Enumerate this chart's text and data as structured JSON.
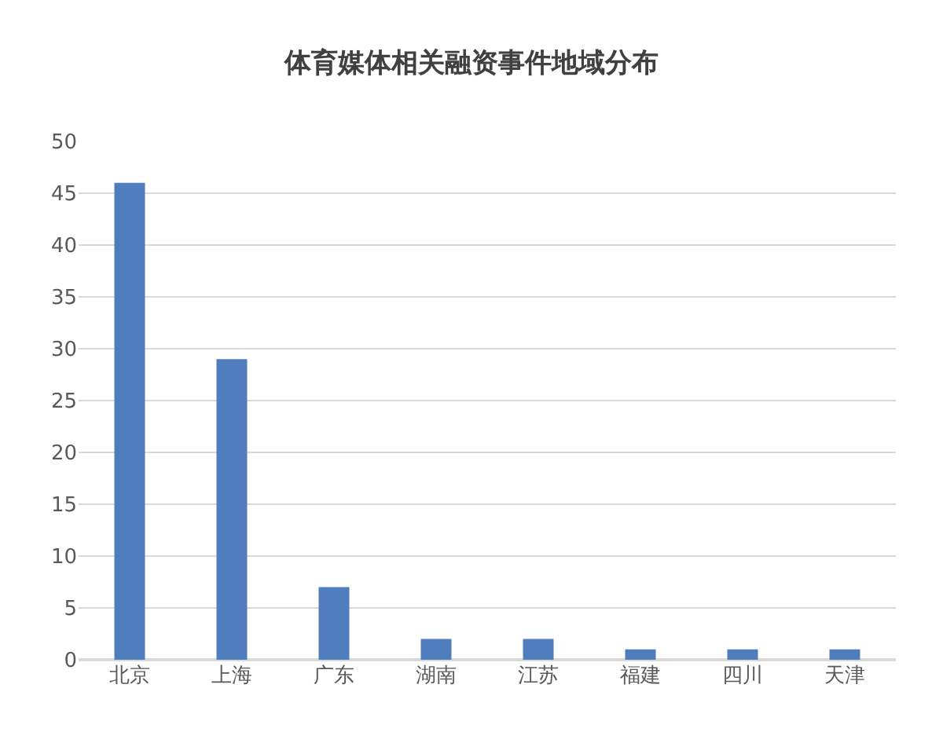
{
  "chart_data": {
    "type": "bar",
    "title": "体育媒体相关融资事件地域分布",
    "categories": [
      "北京",
      "上海",
      "广东",
      "湖南",
      "江苏",
      "福建",
      "四川",
      "天津"
    ],
    "values": [
      46,
      29,
      7,
      2,
      2,
      1,
      1,
      1
    ],
    "color": "#4f7dbd",
    "ylim": [
      0,
      50
    ],
    "yticks": [
      0,
      5,
      10,
      15,
      20,
      25,
      30,
      35,
      40,
      45,
      50
    ],
    "grid": "y"
  }
}
